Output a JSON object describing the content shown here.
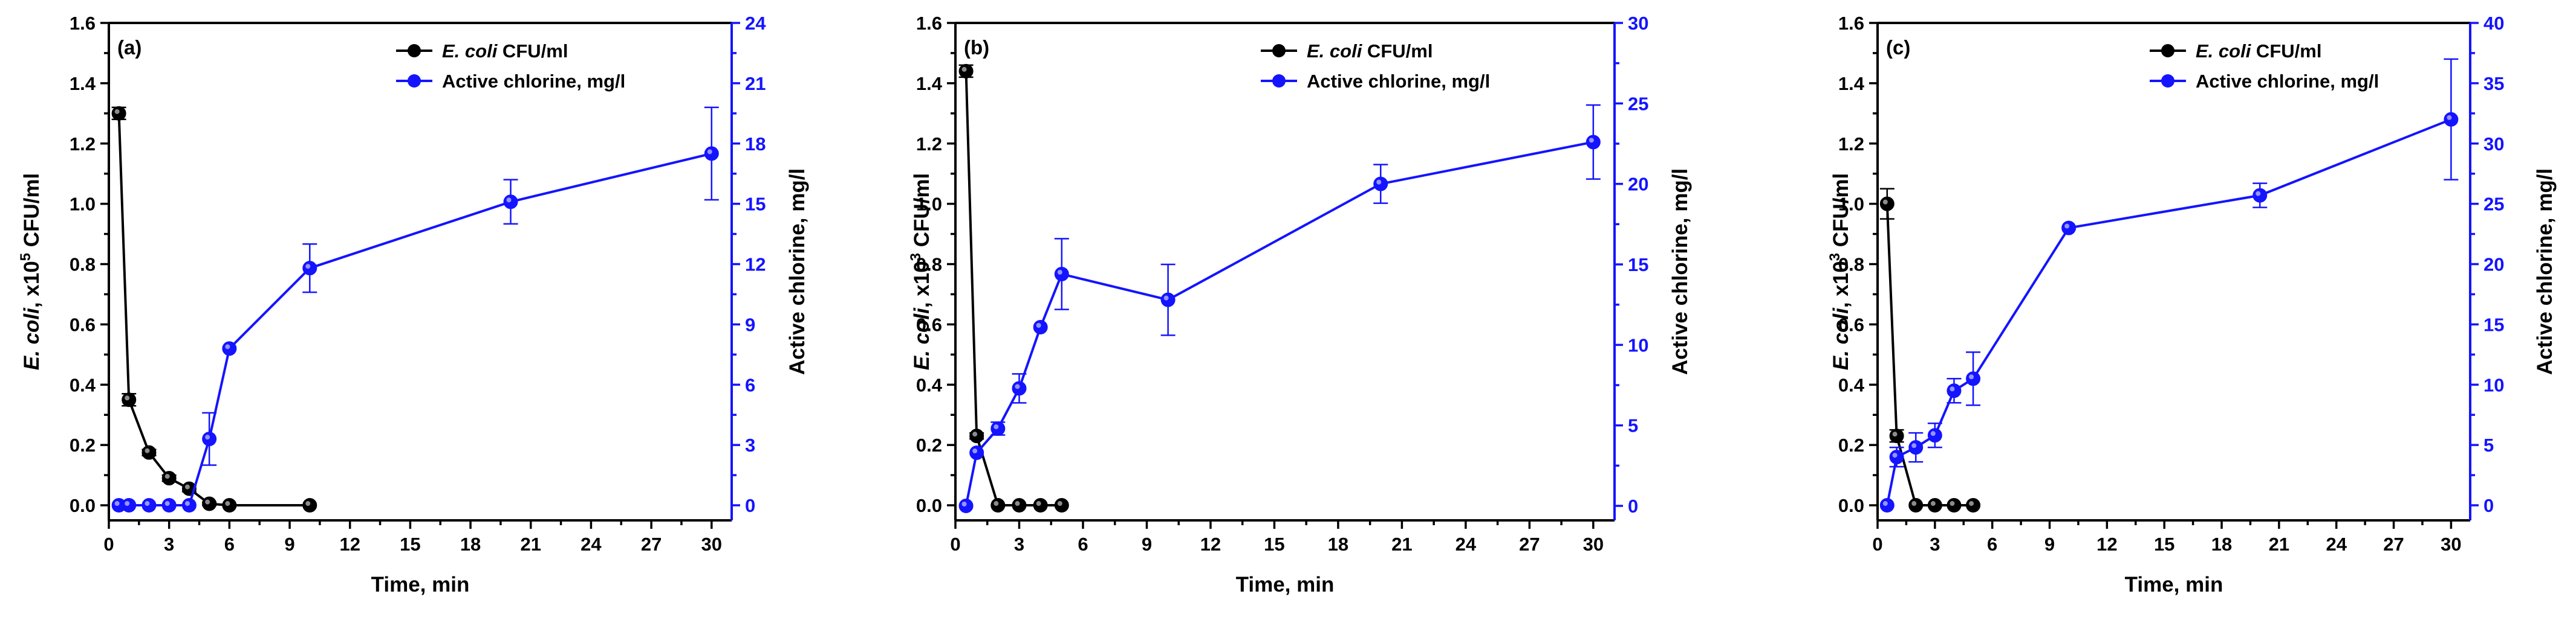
{
  "chart_data": [
    {
      "type": "line",
      "panel_label": "(a)",
      "xlabel": "Time, min",
      "ylabel_italic": "E. coli",
      "ylabel_unit": ", x10",
      "ylabel_exp": "5",
      "ylabel_tail": " CFU/ml",
      "y2label": "Active chlorine, mg/l",
      "xlim": [
        0,
        31
      ],
      "ylim": [
        -0.05,
        1.6
      ],
      "y2lim": [
        -0.75,
        24
      ],
      "xticks": [
        0,
        3,
        6,
        9,
        12,
        15,
        18,
        21,
        24,
        27,
        30
      ],
      "yticks": [
        "0.0",
        "0.2",
        "0.4",
        "0.6",
        "0.8",
        "1.0",
        "1.2",
        "1.4",
        "1.6"
      ],
      "y2ticks": [
        "0",
        "3",
        "6",
        "9",
        "12",
        "15",
        "18",
        "21",
        "24"
      ],
      "legend": {
        "ecoli_italic": "E. coli",
        "ecoli_rest": " CFU/ml",
        "chlorine": "Active chlorine, mg/l"
      },
      "series": [
        {
          "name": "E. coli, CFU/ml",
          "axis": "left",
          "color": "#000000",
          "x": [
            0.5,
            1,
            2,
            3,
            4,
            5,
            6,
            10
          ],
          "y": [
            1.3,
            0.35,
            0.175,
            0.09,
            0.055,
            0.005,
            0.0,
            0.0
          ],
          "err": [
            0.02,
            0.02,
            0.01,
            0.01,
            0.01,
            0.005,
            0.0,
            0.0
          ]
        },
        {
          "name": "Active chlorine, mg/l",
          "axis": "right",
          "color": "#1414ff",
          "x": [
            0.5,
            1,
            2,
            3,
            4,
            5,
            6,
            10,
            20,
            30
          ],
          "y": [
            0,
            0,
            0,
            0,
            0,
            3.3,
            7.8,
            11.8,
            15.1,
            17.5
          ],
          "err": [
            0,
            0,
            0,
            0,
            0,
            1.3,
            0,
            1.2,
            1.1,
            2.3
          ]
        }
      ]
    },
    {
      "type": "line",
      "panel_label": "(b)",
      "xlabel": "Time, min",
      "ylabel_italic": "E. coli",
      "ylabel_unit": ", x10",
      "ylabel_exp": "3",
      "ylabel_tail": " CFU/ml",
      "y2label": "Active chlorine, mg/l",
      "xlim": [
        0,
        31
      ],
      "ylim": [
        -0.05,
        1.6
      ],
      "y2lim": [
        -0.9,
        30
      ],
      "xticks": [
        0,
        3,
        6,
        9,
        12,
        15,
        18,
        21,
        24,
        27,
        30
      ],
      "yticks": [
        "0.0",
        "0.2",
        "0.4",
        "0.6",
        "0.8",
        "1.0",
        "1.2",
        "1.4",
        "1.6"
      ],
      "y2ticks": [
        "0",
        "5",
        "10",
        "15",
        "20",
        "25",
        "30"
      ],
      "legend": {
        "ecoli_italic": "E. coli",
        "ecoli_rest": " CFU/ml",
        "chlorine": "Active chlorine, mg/l"
      },
      "series": [
        {
          "name": "E. coli, CFU/ml",
          "axis": "left",
          "color": "#000000",
          "x": [
            0.5,
            1,
            2,
            3,
            4,
            5
          ],
          "y": [
            1.44,
            0.23,
            0.0,
            0.0,
            0.0,
            0.0
          ],
          "err": [
            0.02,
            0.01,
            0,
            0,
            0,
            0
          ]
        },
        {
          "name": "Active chlorine, mg/l",
          "axis": "right",
          "color": "#1414ff",
          "x": [
            0.5,
            1,
            2,
            3,
            4,
            5,
            10,
            20,
            30
          ],
          "y": [
            0,
            3.3,
            4.8,
            7.3,
            11.1,
            14.4,
            12.8,
            20.0,
            22.6
          ],
          "err": [
            0,
            0,
            0.4,
            0.9,
            0,
            2.2,
            2.2,
            1.2,
            2.3
          ]
        }
      ]
    },
    {
      "type": "line",
      "panel_label": "(c)",
      "xlabel": "Time, min",
      "ylabel_italic": "E. coli",
      "ylabel_unit": ", x10",
      "ylabel_exp": "3",
      "ylabel_tail": " CFU/ml",
      "y2label": "Active chlorine, mg/l",
      "xlim": [
        0,
        31
      ],
      "ylim": [
        -0.05,
        1.6
      ],
      "y2lim": [
        -1.25,
        40
      ],
      "xticks": [
        0,
        3,
        6,
        9,
        12,
        15,
        18,
        21,
        24,
        27,
        30
      ],
      "yticks": [
        "0.0",
        "0.2",
        "0.4",
        "0.6",
        "0.8",
        "1.0",
        "1.2",
        "1.4",
        "1.6"
      ],
      "y2ticks": [
        "0",
        "5",
        "10",
        "15",
        "20",
        "25",
        "30",
        "35",
        "40"
      ],
      "legend": {
        "ecoli_italic": "E. coli",
        "ecoli_rest": " CFU/ml",
        "chlorine": "Active chlorine, mg/l"
      },
      "series": [
        {
          "name": "E. coli, CFU/ml",
          "axis": "left",
          "color": "#000000",
          "x": [
            0.5,
            1,
            2,
            3,
            4,
            5
          ],
          "y": [
            1.0,
            0.23,
            0.0,
            0.0,
            0.0,
            0.0
          ],
          "err": [
            0.05,
            0.02,
            0,
            0,
            0,
            0
          ]
        },
        {
          "name": "Active chlorine, mg/l",
          "axis": "right",
          "color": "#1414ff",
          "x": [
            0.5,
            1,
            2,
            3,
            4,
            5,
            10,
            20,
            30
          ],
          "y": [
            0,
            4.0,
            4.8,
            5.8,
            9.5,
            10.5,
            23.0,
            25.7,
            32.0
          ],
          "err": [
            0,
            0.8,
            1.2,
            1.0,
            1.0,
            2.2,
            0,
            1.0,
            5.0
          ]
        }
      ]
    }
  ]
}
